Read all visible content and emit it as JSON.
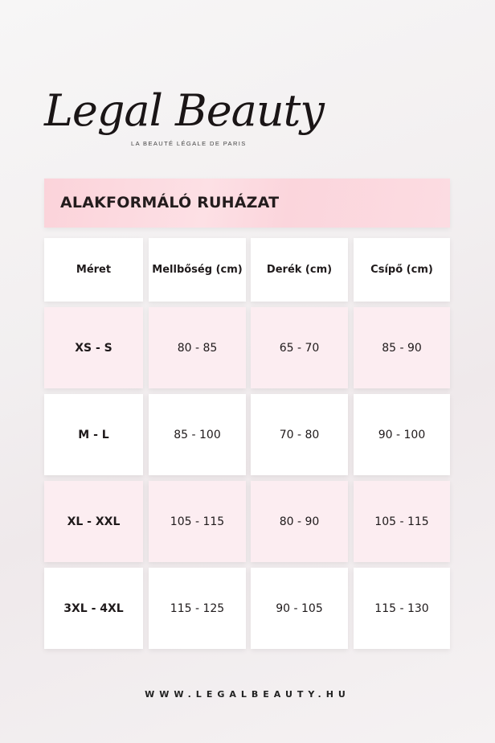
{
  "brand": {
    "logo_text": "Legal Beauty",
    "tagline": "LA BEAUTÉ LÉGALE DE PARIS"
  },
  "title": "ALAKFORMÁLÓ RUHÁZAT",
  "table": {
    "headers": [
      "Méret",
      "Mellbőség (cm)",
      "Derék (cm)",
      "Csípő (cm)"
    ],
    "rows": [
      [
        "XS - S",
        "80 - 85",
        "65 - 70",
        "85 - 90"
      ],
      [
        "M - L",
        "85 - 100",
        "70 - 80",
        "90 - 100"
      ],
      [
        "XL - XXL",
        "105 - 115",
        "80 - 90",
        "105 - 115"
      ],
      [
        "3XL - 4XL",
        "115 - 125",
        "90 - 105",
        "115 - 130"
      ]
    ]
  },
  "footer": "WWW.LEGALBEAUTY.HU",
  "colors": {
    "title_bar": "#fbd3da",
    "pink_row": "#fcedf1",
    "text": "#1f1a1b"
  }
}
